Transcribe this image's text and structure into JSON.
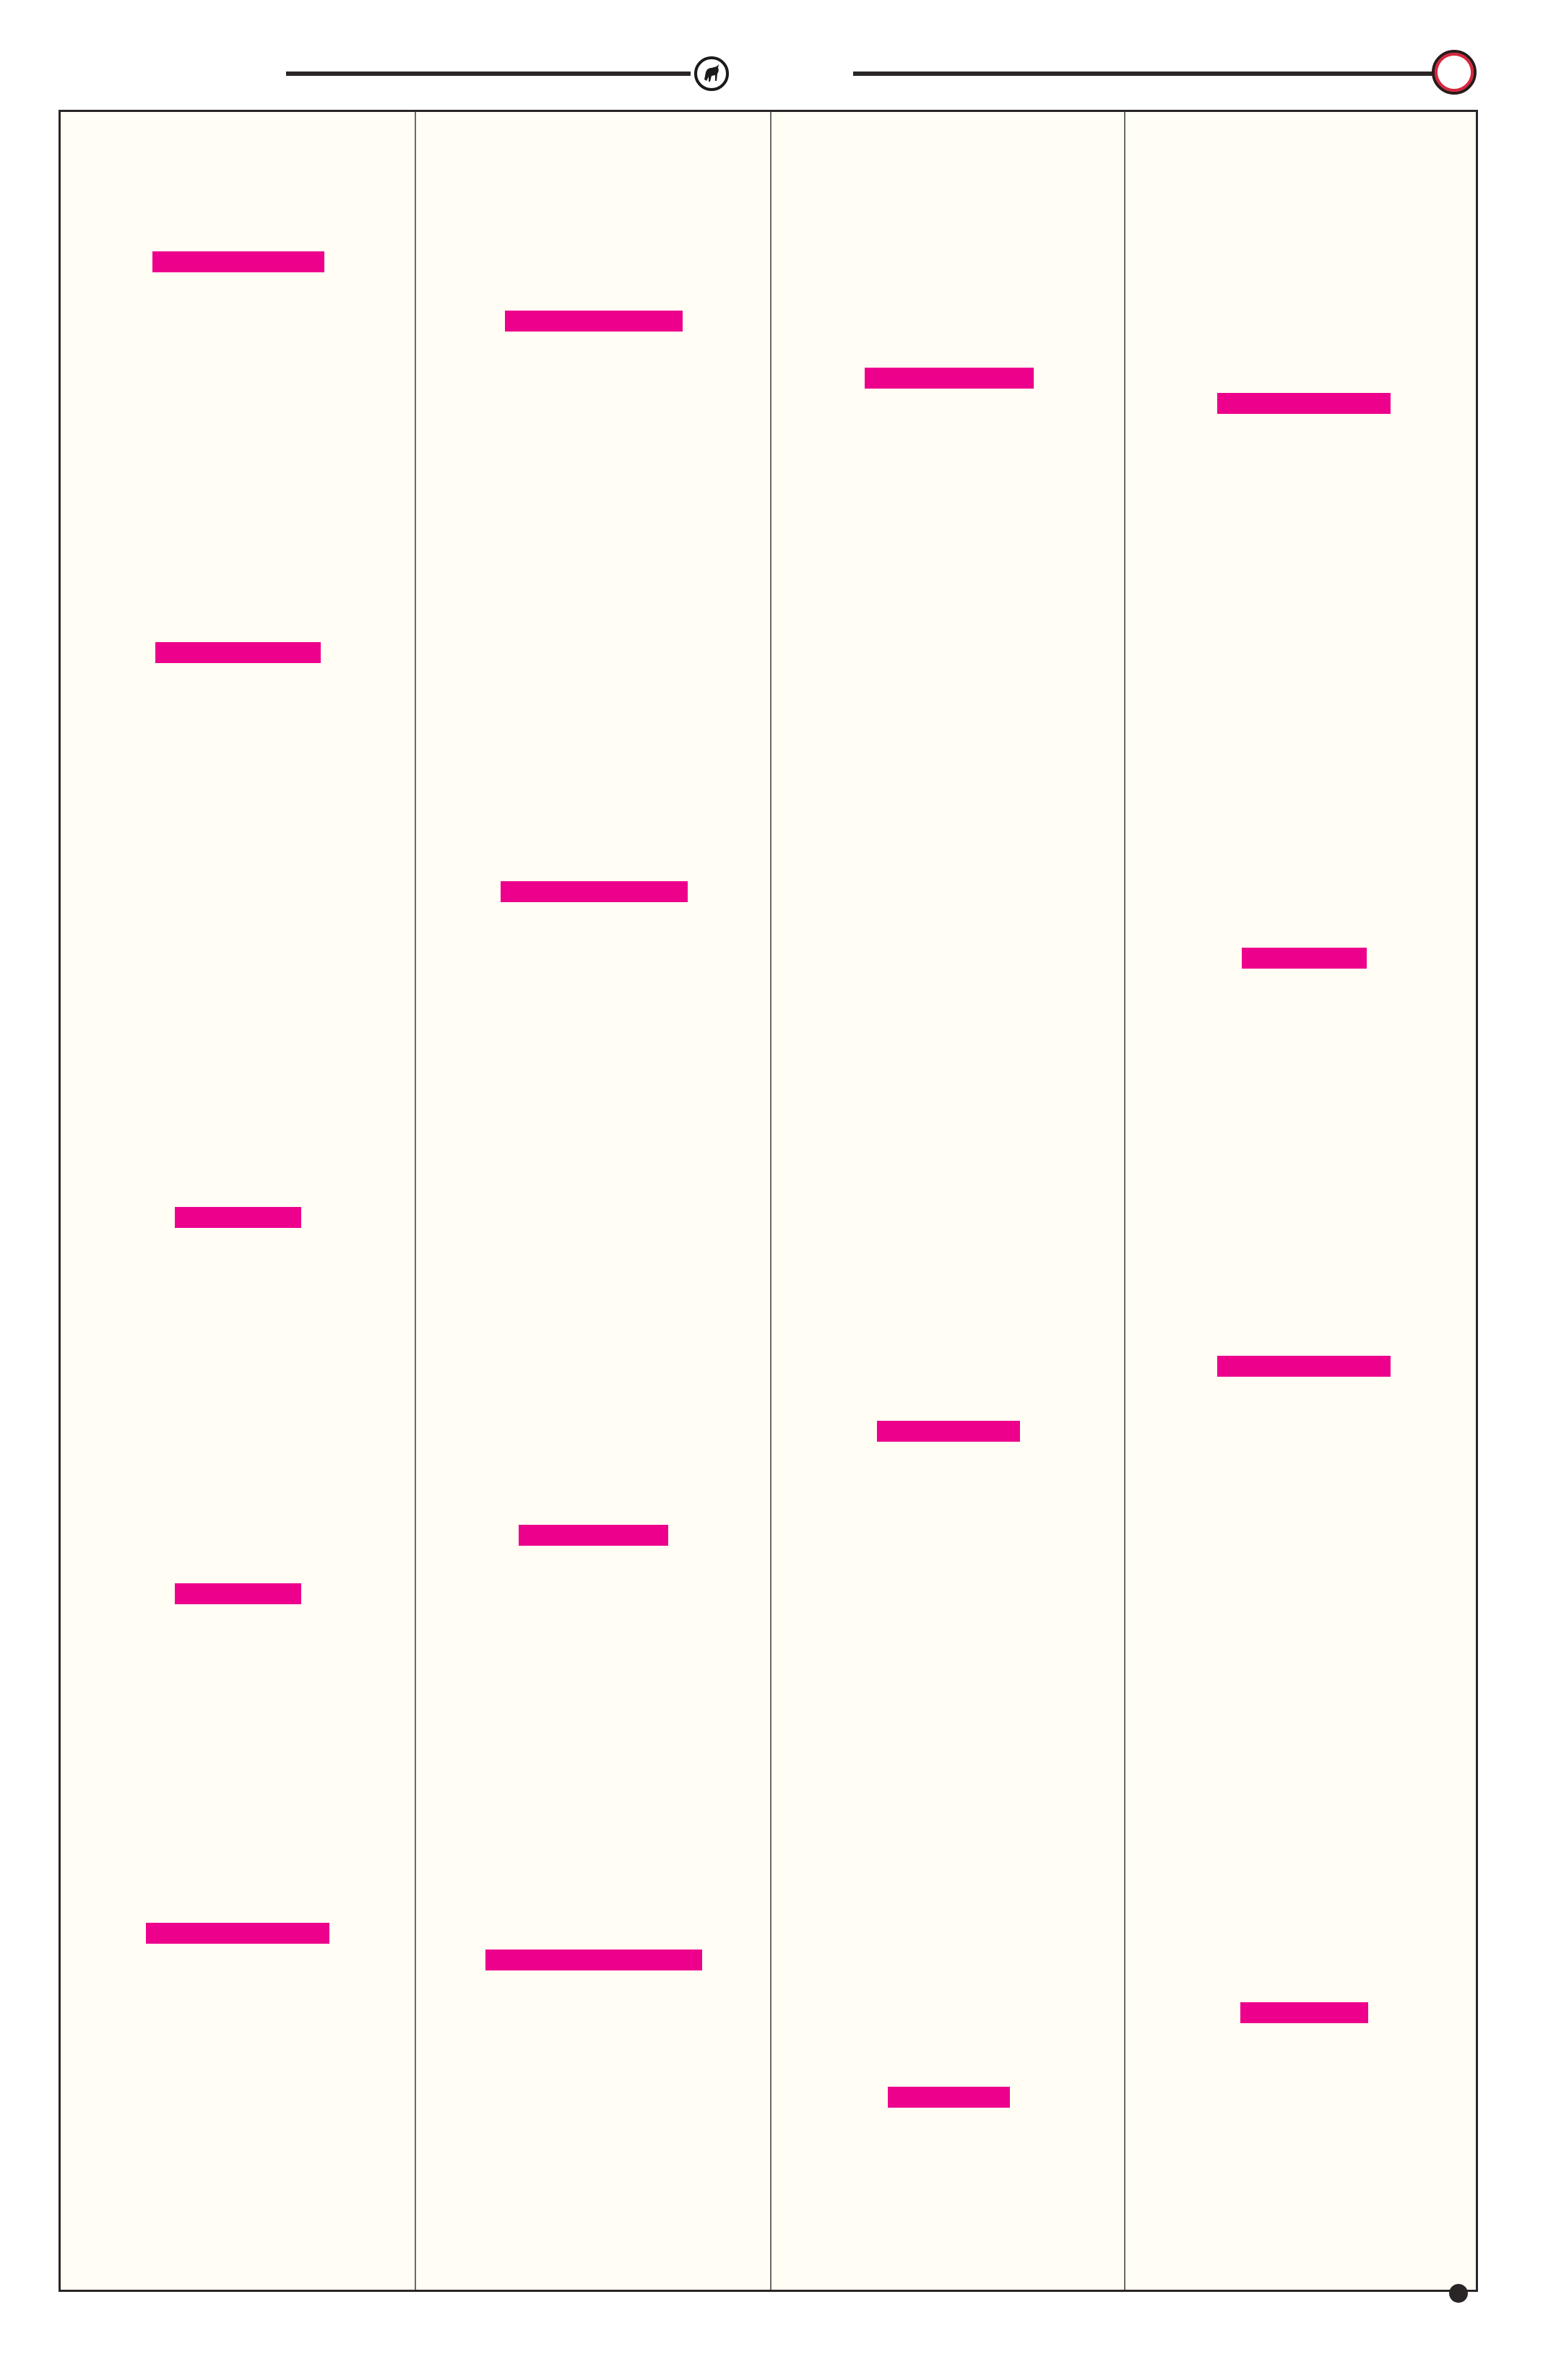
{
  "colors": {
    "highlight_bar": "#ec008c",
    "page_background": "#fffdf4",
    "frame_border": "#2a2626",
    "header_circle_ring": "#d7263d"
  },
  "header": {
    "left_emblem_icon": "bull-emblem-icon",
    "right_emblem_icon": "red-ring-icon"
  },
  "footer": {
    "marker_icon": "filled-dot-icon"
  },
  "columns": [
    {
      "name": "column-1",
      "bar_count": 5
    },
    {
      "name": "column-2",
      "bar_count": 4
    },
    {
      "name": "column-3",
      "bar_count": 3
    },
    {
      "name": "column-4",
      "bar_count": 4
    }
  ]
}
